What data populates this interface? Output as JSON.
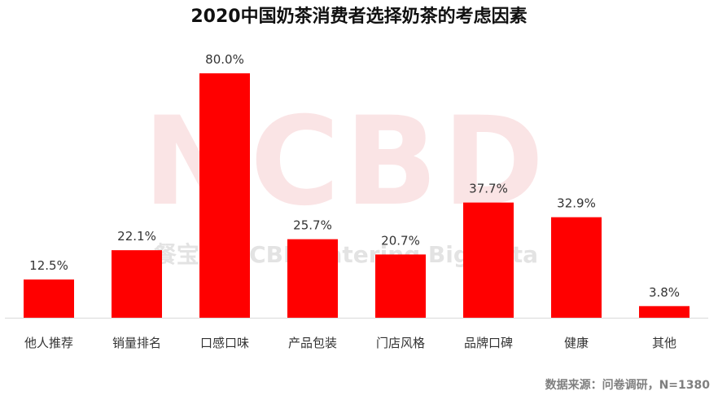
{
  "chart_data": {
    "type": "bar",
    "title": "2020中国奶茶消费者选择奶茶的考虑因素",
    "categories": [
      "他人推荐",
      "销量排名",
      "口感口味",
      "产品包装",
      "门店风格",
      "品牌口碑",
      "健康",
      "其他"
    ],
    "values": [
      12.5,
      22.1,
      80.0,
      25.7,
      20.7,
      37.7,
      32.9,
      3.8
    ],
    "value_labels": [
      "12.5%",
      "22.1%",
      "80.0%",
      "25.7%",
      "20.7%",
      "37.7%",
      "32.9%",
      "3.8%"
    ],
    "unit": "%",
    "ylim": [
      0,
      80
    ],
    "xlabel": "",
    "ylabel": "",
    "grid": false,
    "legend": "none",
    "bar_color": "#ff0000"
  },
  "source": "数据来源：问卷调研，N=1380",
  "watermark": {
    "logo": "NCBD",
    "text": "餐宝典 NCBD Catering Big Data"
  }
}
